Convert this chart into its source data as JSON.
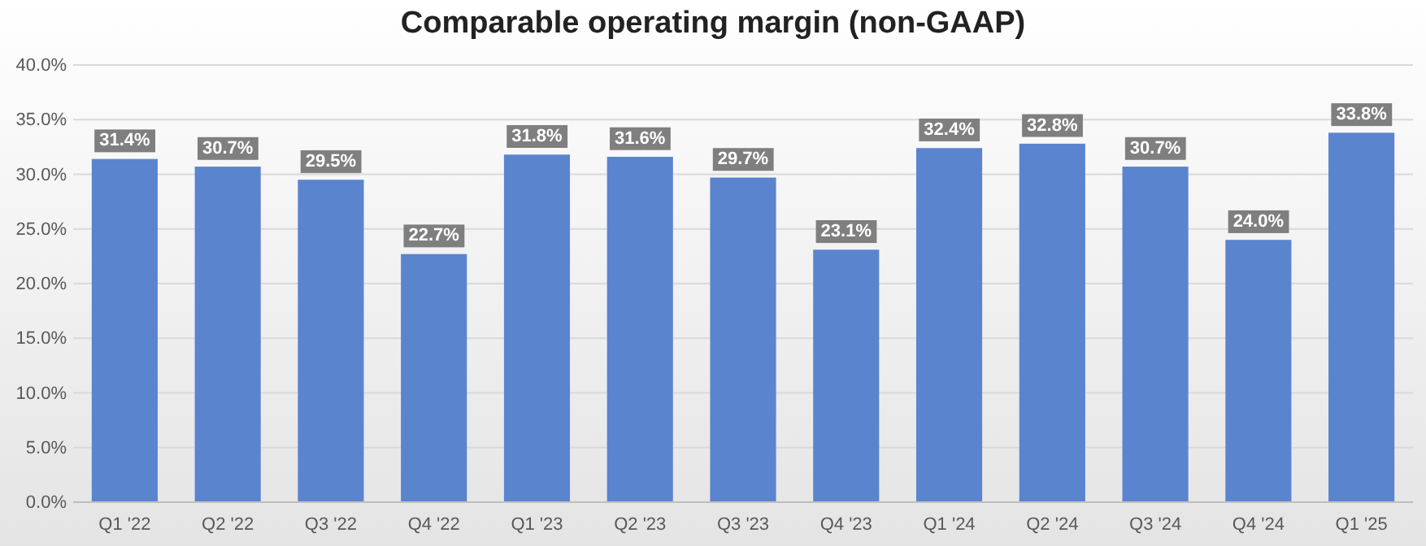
{
  "chart_data": {
    "type": "bar",
    "title": "Comparable operating margin (non-GAAP)",
    "categories": [
      "Q1 '22",
      "Q2 '22",
      "Q3 '22",
      "Q4 '22",
      "Q1 '23",
      "Q2 '23",
      "Q3 '23",
      "Q4 '23",
      "Q1 '24",
      "Q2 '24",
      "Q3 '24",
      "Q4 '24",
      "Q1 '25"
    ],
    "values": [
      31.4,
      30.7,
      29.5,
      22.7,
      31.8,
      31.6,
      29.7,
      23.1,
      32.4,
      32.8,
      30.7,
      24.0,
      33.8
    ],
    "value_labels": [
      "31.4%",
      "30.7%",
      "29.5%",
      "22.7%",
      "31.8%",
      "31.6%",
      "29.7%",
      "23.1%",
      "32.4%",
      "32.8%",
      "30.7%",
      "24.0%",
      "33.8%"
    ],
    "color": "#5b84cf",
    "ylim": [
      0,
      40
    ],
    "yticks": [
      {
        "value": 0,
        "label": "0.0%"
      },
      {
        "value": 5,
        "label": "5.0%"
      },
      {
        "value": 10,
        "label": "10.0%"
      },
      {
        "value": 15,
        "label": "15.0%"
      },
      {
        "value": 20,
        "label": "20.0%"
      },
      {
        "value": 25,
        "label": "25.0%"
      },
      {
        "value": 30,
        "label": "30.0%"
      },
      {
        "value": 35,
        "label": "35.0%"
      },
      {
        "value": 40,
        "label": "40.0%"
      }
    ],
    "grid": "y"
  }
}
